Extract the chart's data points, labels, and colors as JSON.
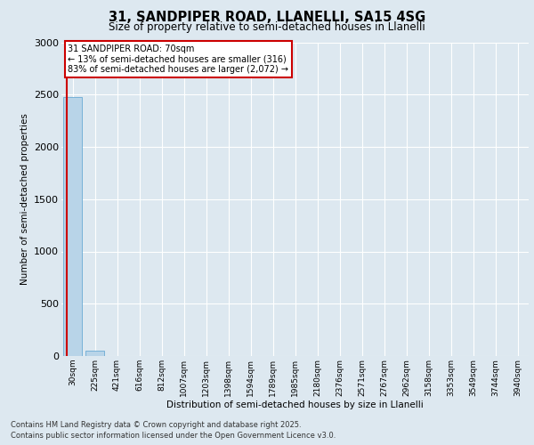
{
  "title_line1": "31, SANDPIPER ROAD, LLANELLI, SA15 4SG",
  "title_line2": "Size of property relative to semi-detached houses in Llanelli",
  "xlabel": "Distribution of semi-detached houses by size in Llanelli",
  "ylabel": "Number of semi-detached properties",
  "bin_labels": [
    "30sqm",
    "225sqm",
    "421sqm",
    "616sqm",
    "812sqm",
    "1007sqm",
    "1203sqm",
    "1398sqm",
    "1594sqm",
    "1789sqm",
    "1985sqm",
    "2180sqm",
    "2376sqm",
    "2571sqm",
    "2767sqm",
    "2962sqm",
    "3158sqm",
    "3353sqm",
    "3549sqm",
    "3744sqm",
    "3940sqm"
  ],
  "bin_values": [
    2480,
    50,
    0,
    0,
    0,
    0,
    0,
    0,
    0,
    0,
    0,
    0,
    0,
    0,
    0,
    0,
    0,
    0,
    0,
    0,
    0
  ],
  "bar_color": "#b8d4e8",
  "bar_edge_color": "#6aaad4",
  "annotation_text_line1": "31 SANDPIPER ROAD: 70sqm",
  "annotation_text_line2": "← 13% of semi-detached houses are smaller (316)",
  "annotation_text_line3": "83% of semi-detached houses are larger (2,072) →",
  "ylim": [
    0,
    3000
  ],
  "yticks": [
    0,
    500,
    1000,
    1500,
    2000,
    2500,
    3000
  ],
  "footer_line1": "Contains HM Land Registry data © Crown copyright and database right 2025.",
  "footer_line2": "Contains public sector information licensed under the Open Government Licence v3.0.",
  "bg_color": "#dde8f0",
  "plot_bg_color": "#dde8f0",
  "grid_color": "#ffffff",
  "red_line_color": "#cc0000",
  "annotation_box_color": "#cc0000"
}
